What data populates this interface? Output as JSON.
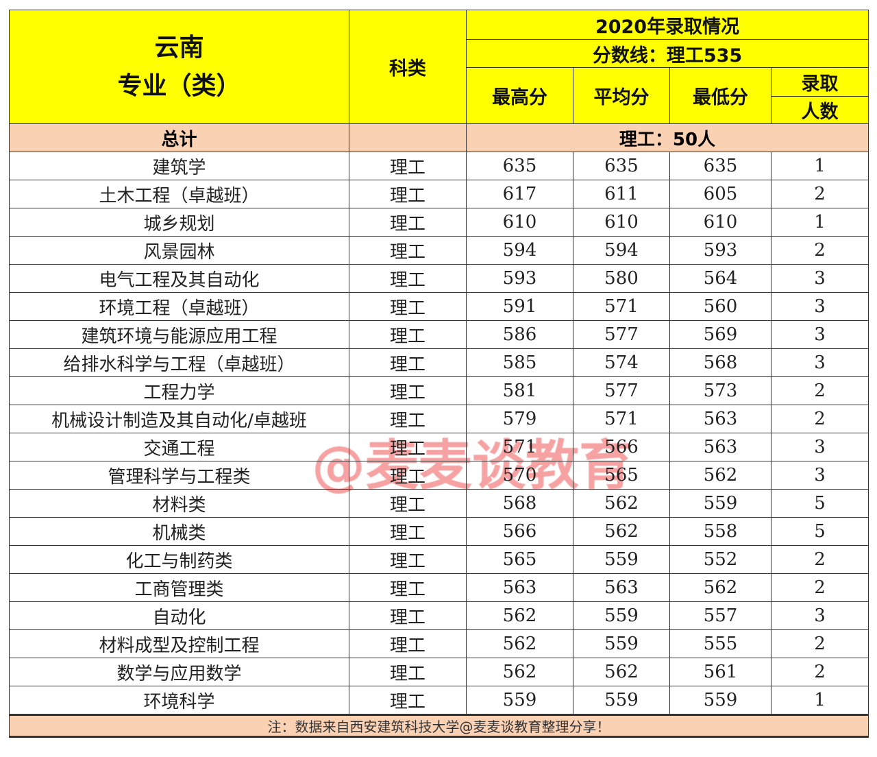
{
  "header": {
    "region": "云南",
    "major": "专业（类）",
    "category": "科类",
    "year_title": "2020年录取情况",
    "cutoff": "分数线：理工535",
    "max": "最高分",
    "avg": "平均分",
    "min": "最低分",
    "count_1": "录取",
    "count_2": "人数"
  },
  "total": {
    "label": "总计",
    "value": "理工：50人"
  },
  "rows": [
    {
      "major": "建筑学",
      "cat": "理工",
      "max": "635",
      "avg": "635",
      "min": "635",
      "n": "1"
    },
    {
      "major": "土木工程（卓越班）",
      "cat": "理工",
      "max": "617",
      "avg": "611",
      "min": "605",
      "n": "2"
    },
    {
      "major": "城乡规划",
      "cat": "理工",
      "max": "610",
      "avg": "610",
      "min": "610",
      "n": "1"
    },
    {
      "major": "风景园林",
      "cat": "理工",
      "max": "594",
      "avg": "594",
      "min": "593",
      "n": "2"
    },
    {
      "major": "电气工程及其自动化",
      "cat": "理工",
      "max": "593",
      "avg": "580",
      "min": "564",
      "n": "3"
    },
    {
      "major": "环境工程（卓越班）",
      "cat": "理工",
      "max": "591",
      "avg": "571",
      "min": "560",
      "n": "3"
    },
    {
      "major": "建筑环境与能源应用工程",
      "cat": "理工",
      "max": "586",
      "avg": "577",
      "min": "569",
      "n": "3"
    },
    {
      "major": "给排水科学与工程（卓越班）",
      "cat": "理工",
      "max": "585",
      "avg": "574",
      "min": "568",
      "n": "3"
    },
    {
      "major": "工程力学",
      "cat": "理工",
      "max": "581",
      "avg": "577",
      "min": "573",
      "n": "2"
    },
    {
      "major": "机械设计制造及其自动化/卓越班",
      "cat": "理工",
      "max": "579",
      "avg": "571",
      "min": "563",
      "n": "2"
    },
    {
      "major": "交通工程",
      "cat": "理工",
      "max": "571",
      "avg": "566",
      "min": "563",
      "n": "3"
    },
    {
      "major": "管理科学与工程类",
      "cat": "理工",
      "max": "570",
      "avg": "565",
      "min": "562",
      "n": "3"
    },
    {
      "major": "材料类",
      "cat": "理工",
      "max": "568",
      "avg": "562",
      "min": "559",
      "n": "5"
    },
    {
      "major": "机械类",
      "cat": "理工",
      "max": "566",
      "avg": "562",
      "min": "558",
      "n": "5"
    },
    {
      "major": "化工与制药类",
      "cat": "理工",
      "max": "565",
      "avg": "559",
      "min": "552",
      "n": "2"
    },
    {
      "major": "工商管理类",
      "cat": "理工",
      "max": "563",
      "avg": "563",
      "min": "562",
      "n": "2"
    },
    {
      "major": "自动化",
      "cat": "理工",
      "max": "562",
      "avg": "559",
      "min": "557",
      "n": "3"
    },
    {
      "major": "材料成型及控制工程",
      "cat": "理工",
      "max": "562",
      "avg": "559",
      "min": "555",
      "n": "2"
    },
    {
      "major": "数学与应用数学",
      "cat": "理工",
      "max": "562",
      "avg": "562",
      "min": "561",
      "n": "2"
    },
    {
      "major": "环境科学",
      "cat": "理工",
      "max": "559",
      "avg": "559",
      "min": "559",
      "n": "1"
    }
  ],
  "footer": "注：数据来自西安建筑科技大学@麦麦谈教育整理分享！",
  "watermark": "@麦麦谈教育",
  "colors": {
    "header_bg": "#ffff00",
    "total_bg": "#fbd1b4",
    "watermark": "#f04646"
  }
}
